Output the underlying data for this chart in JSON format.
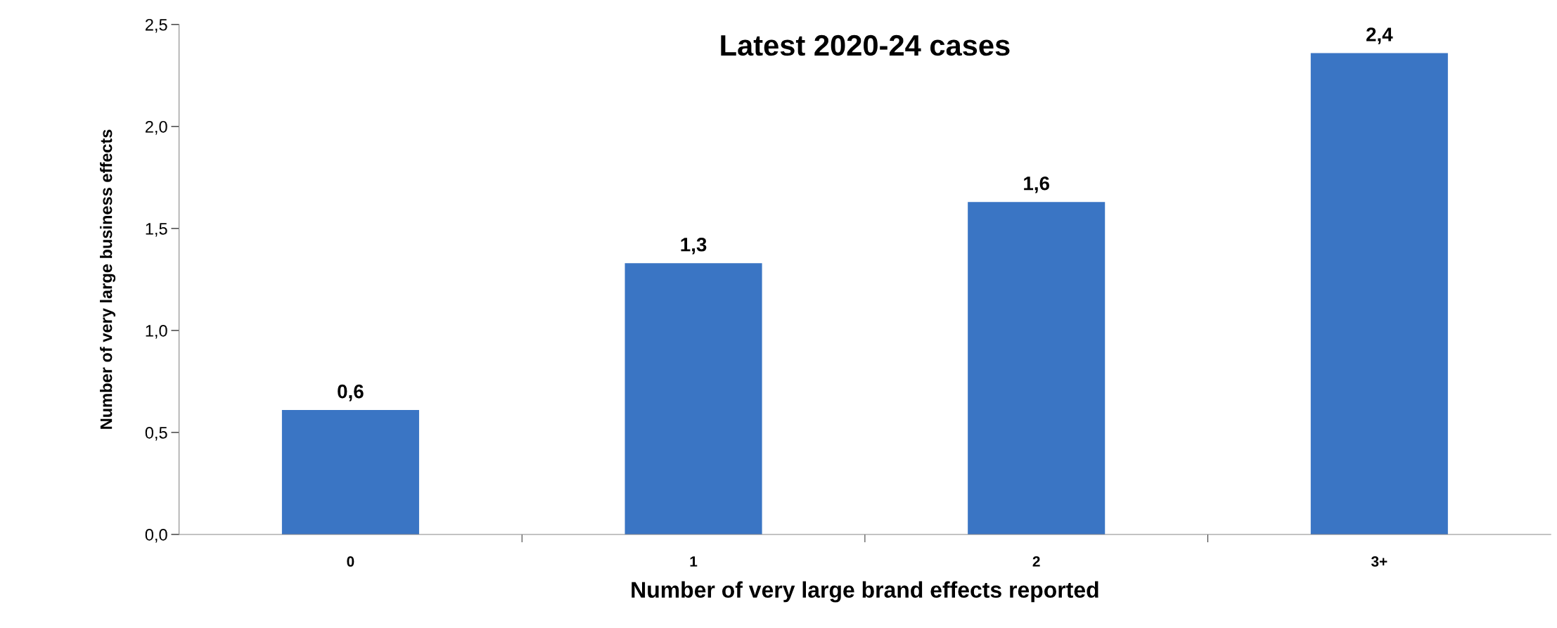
{
  "chart_data": {
    "type": "bar",
    "title": "Latest 2020-24 cases",
    "xlabel": "Number of very large brand effects reported",
    "ylabel": "Number of very large business effects",
    "categories": [
      "0",
      "1",
      "2",
      "3+"
    ],
    "values": [
      0.61,
      1.33,
      1.63,
      2.36
    ],
    "value_labels": [
      "0,6",
      "1,3",
      "1,6",
      "2,4"
    ],
    "color": "#3a75c4",
    "ylim": [
      0,
      2.5
    ],
    "yticks": [
      {
        "value": 0,
        "label": "0,0"
      },
      {
        "value": 0.5,
        "label": "0,5"
      },
      {
        "value": 1.0,
        "label": "1,0"
      },
      {
        "value": 1.5,
        "label": "1,5"
      },
      {
        "value": 2.0,
        "label": "2,0"
      },
      {
        "value": 2.5,
        "label": "2,5"
      }
    ],
    "grid": false,
    "legend": false
  }
}
